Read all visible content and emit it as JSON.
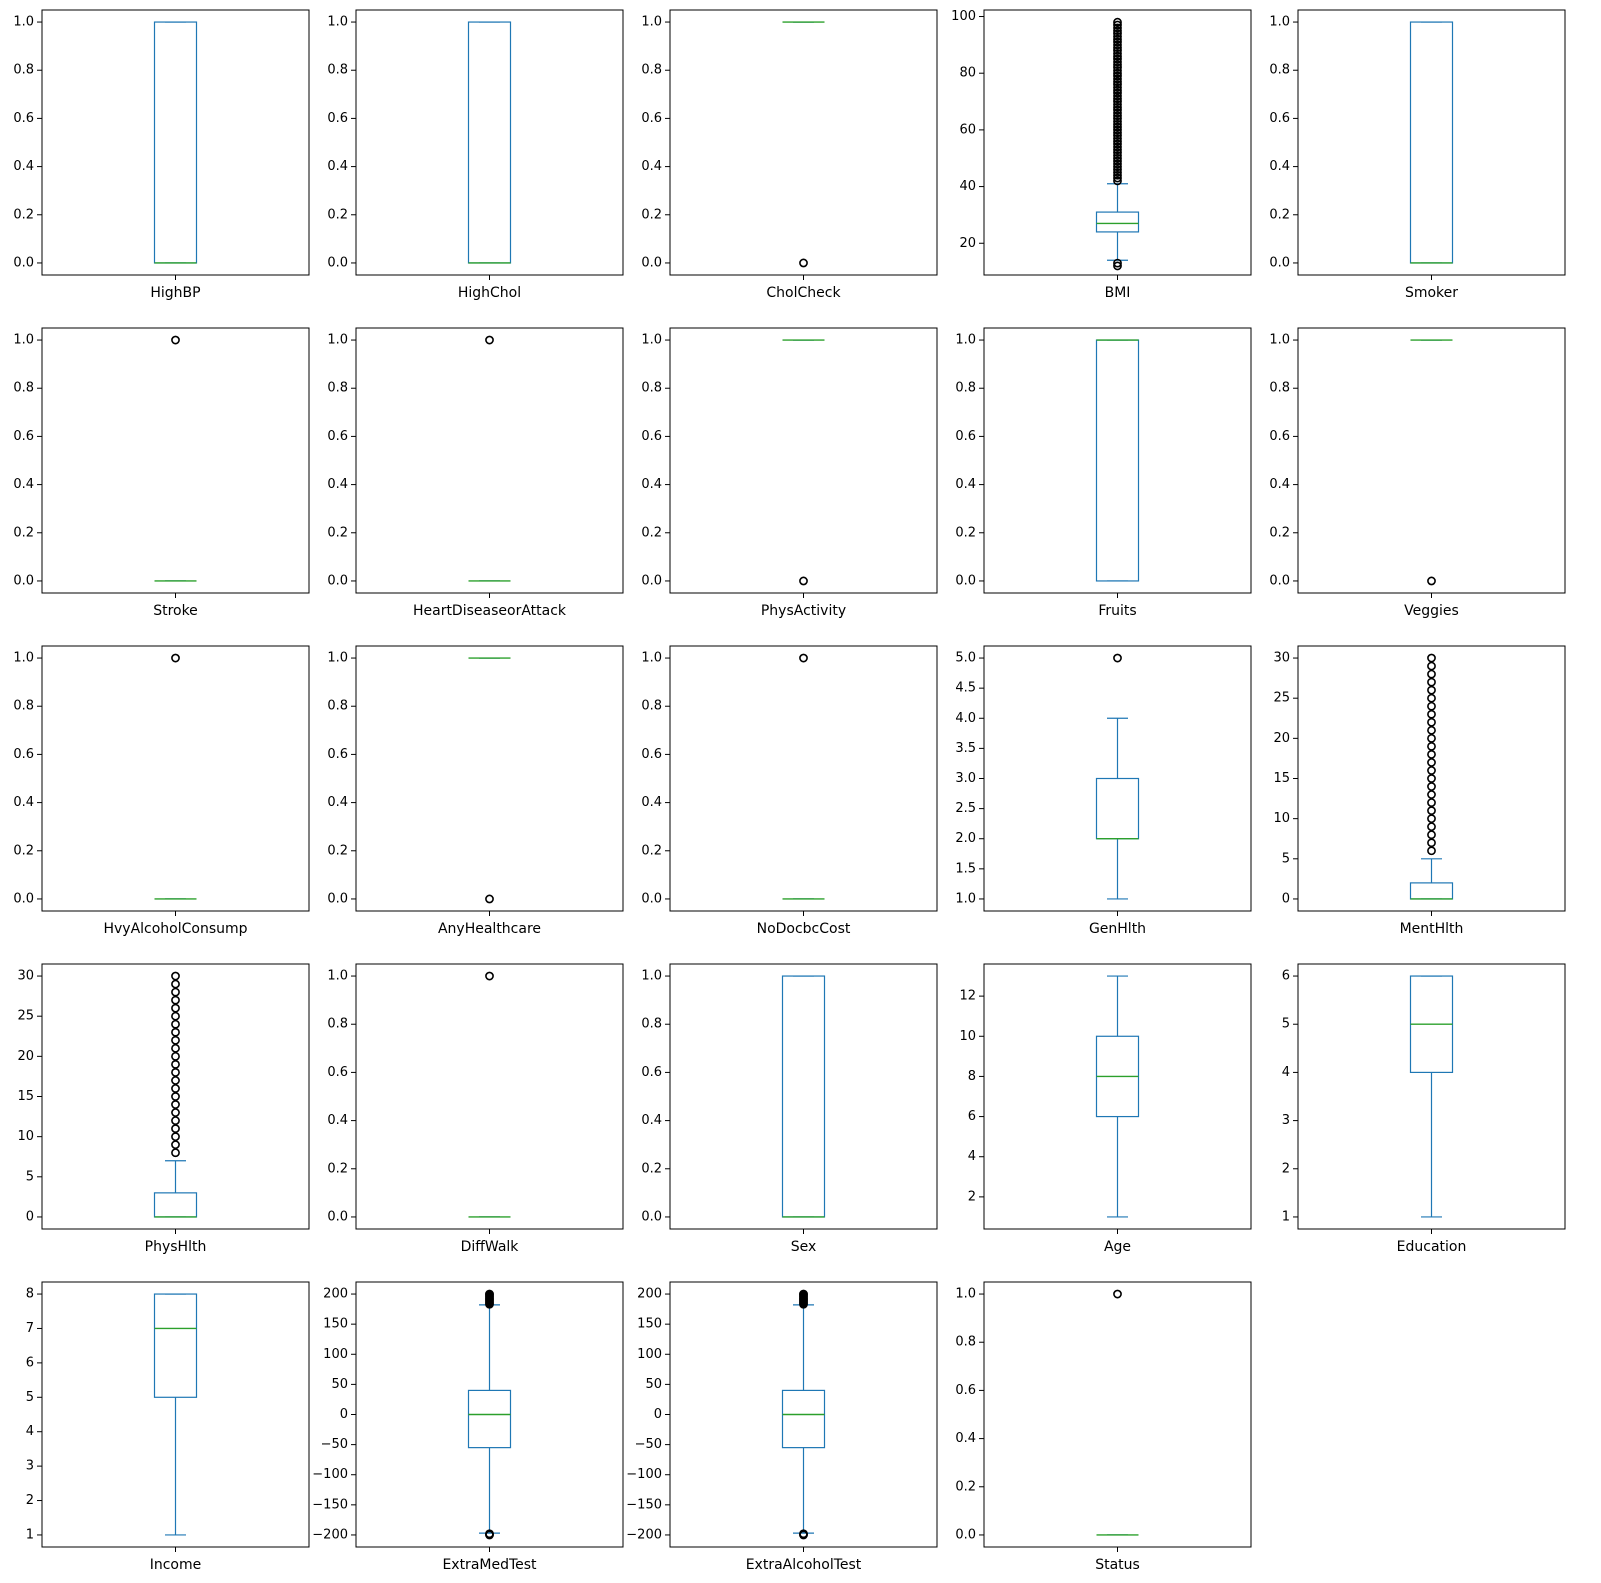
{
  "colors": {
    "box": "#1f77b4",
    "median": "#2ca02c",
    "flier": "#000000",
    "axes": "#000000",
    "background": "#ffffff"
  },
  "chart_data": [
    {
      "type": "box",
      "label": "HighBP",
      "ylim": [
        -0.05,
        1.05
      ],
      "yticks": [
        0.0,
        0.2,
        0.4,
        0.6,
        0.8,
        1.0
      ],
      "yticklabels": [
        "0.0",
        "0.2",
        "0.4",
        "0.6",
        "0.8",
        "1.0"
      ],
      "q1": 0,
      "median": 0,
      "q3": 1,
      "whisker_low": 0,
      "whisker_high": 1,
      "fliers": []
    },
    {
      "type": "box",
      "label": "HighChol",
      "ylim": [
        -0.05,
        1.05
      ],
      "yticks": [
        0.0,
        0.2,
        0.4,
        0.6,
        0.8,
        1.0
      ],
      "yticklabels": [
        "0.0",
        "0.2",
        "0.4",
        "0.6",
        "0.8",
        "1.0"
      ],
      "q1": 0,
      "median": 0,
      "q3": 1,
      "whisker_low": 0,
      "whisker_high": 1,
      "fliers": []
    },
    {
      "type": "box",
      "label": "CholCheck",
      "ylim": [
        -0.05,
        1.05
      ],
      "yticks": [
        0.0,
        0.2,
        0.4,
        0.6,
        0.8,
        1.0
      ],
      "yticklabels": [
        "0.0",
        "0.2",
        "0.4",
        "0.6",
        "0.8",
        "1.0"
      ],
      "q1": 1,
      "median": 1,
      "q3": 1,
      "whisker_low": 1,
      "whisker_high": 1,
      "fliers": [
        0
      ]
    },
    {
      "type": "box",
      "label": "BMI",
      "ylim": [
        8.8,
        102.3
      ],
      "yticks": [
        20,
        40,
        60,
        80,
        100
      ],
      "yticklabels": [
        "20",
        "40",
        "60",
        "80",
        "100"
      ],
      "q1": 24,
      "median": 27,
      "q3": 31,
      "whisker_low": 14,
      "whisker_high": 41,
      "fliers": [
        12,
        13,
        42,
        43,
        44,
        45,
        46,
        47,
        48,
        49,
        50,
        51,
        52,
        53,
        54,
        55,
        56,
        57,
        58,
        59,
        60,
        61,
        62,
        63,
        64,
        65,
        66,
        67,
        68,
        69,
        70,
        71,
        72,
        73,
        74,
        75,
        76,
        77,
        78,
        79,
        80,
        81,
        82,
        83,
        84,
        85,
        86,
        87,
        88,
        89,
        90,
        91,
        92,
        93,
        94,
        95,
        96,
        97,
        98
      ]
    },
    {
      "type": "box",
      "label": "Smoker",
      "ylim": [
        -0.05,
        1.05
      ],
      "yticks": [
        0.0,
        0.2,
        0.4,
        0.6,
        0.8,
        1.0
      ],
      "yticklabels": [
        "0.0",
        "0.2",
        "0.4",
        "0.6",
        "0.8",
        "1.0"
      ],
      "q1": 0,
      "median": 0,
      "q3": 1,
      "whisker_low": 0,
      "whisker_high": 1,
      "fliers": []
    },
    {
      "type": "box",
      "label": "Stroke",
      "ylim": [
        -0.05,
        1.05
      ],
      "yticks": [
        0.0,
        0.2,
        0.4,
        0.6,
        0.8,
        1.0
      ],
      "yticklabels": [
        "0.0",
        "0.2",
        "0.4",
        "0.6",
        "0.8",
        "1.0"
      ],
      "q1": 0,
      "median": 0,
      "q3": 0,
      "whisker_low": 0,
      "whisker_high": 0,
      "fliers": [
        1
      ]
    },
    {
      "type": "box",
      "label": "HeartDiseaseorAttack",
      "ylim": [
        -0.05,
        1.05
      ],
      "yticks": [
        0.0,
        0.2,
        0.4,
        0.6,
        0.8,
        1.0
      ],
      "yticklabels": [
        "0.0",
        "0.2",
        "0.4",
        "0.6",
        "0.8",
        "1.0"
      ],
      "q1": 0,
      "median": 0,
      "q3": 0,
      "whisker_low": 0,
      "whisker_high": 0,
      "fliers": [
        1
      ]
    },
    {
      "type": "box",
      "label": "PhysActivity",
      "ylim": [
        -0.05,
        1.05
      ],
      "yticks": [
        0.0,
        0.2,
        0.4,
        0.6,
        0.8,
        1.0
      ],
      "yticklabels": [
        "0.0",
        "0.2",
        "0.4",
        "0.6",
        "0.8",
        "1.0"
      ],
      "q1": 1,
      "median": 1,
      "q3": 1,
      "whisker_low": 1,
      "whisker_high": 1,
      "fliers": [
        0
      ]
    },
    {
      "type": "box",
      "label": "Fruits",
      "ylim": [
        -0.05,
        1.05
      ],
      "yticks": [
        0.0,
        0.2,
        0.4,
        0.6,
        0.8,
        1.0
      ],
      "yticklabels": [
        "0.0",
        "0.2",
        "0.4",
        "0.6",
        "0.8",
        "1.0"
      ],
      "q1": 0,
      "median": 1,
      "q3": 1,
      "whisker_low": 0,
      "whisker_high": 1,
      "fliers": []
    },
    {
      "type": "box",
      "label": "Veggies",
      "ylim": [
        -0.05,
        1.05
      ],
      "yticks": [
        0.0,
        0.2,
        0.4,
        0.6,
        0.8,
        1.0
      ],
      "yticklabels": [
        "0.0",
        "0.2",
        "0.4",
        "0.6",
        "0.8",
        "1.0"
      ],
      "q1": 1,
      "median": 1,
      "q3": 1,
      "whisker_low": 1,
      "whisker_high": 1,
      "fliers": [
        0
      ]
    },
    {
      "type": "box",
      "label": "HvyAlcoholConsump",
      "ylim": [
        -0.05,
        1.05
      ],
      "yticks": [
        0.0,
        0.2,
        0.4,
        0.6,
        0.8,
        1.0
      ],
      "yticklabels": [
        "0.0",
        "0.2",
        "0.4",
        "0.6",
        "0.8",
        "1.0"
      ],
      "q1": 0,
      "median": 0,
      "q3": 0,
      "whisker_low": 0,
      "whisker_high": 0,
      "fliers": [
        1
      ]
    },
    {
      "type": "box",
      "label": "AnyHealthcare",
      "ylim": [
        -0.05,
        1.05
      ],
      "yticks": [
        0.0,
        0.2,
        0.4,
        0.6,
        0.8,
        1.0
      ],
      "yticklabels": [
        "0.0",
        "0.2",
        "0.4",
        "0.6",
        "0.8",
        "1.0"
      ],
      "q1": 1,
      "median": 1,
      "q3": 1,
      "whisker_low": 1,
      "whisker_high": 1,
      "fliers": [
        0
      ]
    },
    {
      "type": "box",
      "label": "NoDocbcCost",
      "ylim": [
        -0.05,
        1.05
      ],
      "yticks": [
        0.0,
        0.2,
        0.4,
        0.6,
        0.8,
        1.0
      ],
      "yticklabels": [
        "0.0",
        "0.2",
        "0.4",
        "0.6",
        "0.8",
        "1.0"
      ],
      "q1": 0,
      "median": 0,
      "q3": 0,
      "whisker_low": 0,
      "whisker_high": 0,
      "fliers": [
        1
      ]
    },
    {
      "type": "box",
      "label": "GenHlth",
      "ylim": [
        0.8,
        5.2
      ],
      "yticks": [
        1.0,
        1.5,
        2.0,
        2.5,
        3.0,
        3.5,
        4.0,
        4.5,
        5.0
      ],
      "yticklabels": [
        "1.0",
        "1.5",
        "2.0",
        "2.5",
        "3.0",
        "3.5",
        "4.0",
        "4.5",
        "5.0"
      ],
      "q1": 2,
      "median": 2,
      "q3": 3,
      "whisker_low": 1,
      "whisker_high": 4,
      "fliers": [
        5
      ]
    },
    {
      "type": "box",
      "label": "MentHlth",
      "ylim": [
        -1.5,
        31.5
      ],
      "yticks": [
        0,
        5,
        10,
        15,
        20,
        25,
        30
      ],
      "yticklabels": [
        "0",
        "5",
        "10",
        "15",
        "20",
        "25",
        "30"
      ],
      "q1": 0,
      "median": 0,
      "q3": 2,
      "whisker_low": 0,
      "whisker_high": 5,
      "fliers": [
        6,
        7,
        8,
        9,
        10,
        11,
        12,
        13,
        14,
        15,
        16,
        17,
        18,
        19,
        20,
        21,
        22,
        23,
        24,
        25,
        26,
        27,
        28,
        29,
        30
      ]
    },
    {
      "type": "box",
      "label": "PhysHlth",
      "ylim": [
        -1.5,
        31.5
      ],
      "yticks": [
        0,
        5,
        10,
        15,
        20,
        25,
        30
      ],
      "yticklabels": [
        "0",
        "5",
        "10",
        "15",
        "20",
        "25",
        "30"
      ],
      "q1": 0,
      "median": 0,
      "q3": 3,
      "whisker_low": 0,
      "whisker_high": 7,
      "fliers": [
        8,
        9,
        10,
        11,
        12,
        13,
        14,
        15,
        16,
        17,
        18,
        19,
        20,
        21,
        22,
        23,
        24,
        25,
        26,
        27,
        28,
        29,
        30
      ]
    },
    {
      "type": "box",
      "label": "DiffWalk",
      "ylim": [
        -0.05,
        1.05
      ],
      "yticks": [
        0.0,
        0.2,
        0.4,
        0.6,
        0.8,
        1.0
      ],
      "yticklabels": [
        "0.0",
        "0.2",
        "0.4",
        "0.6",
        "0.8",
        "1.0"
      ],
      "q1": 0,
      "median": 0,
      "q3": 0,
      "whisker_low": 0,
      "whisker_high": 0,
      "fliers": [
        1
      ]
    },
    {
      "type": "box",
      "label": "Sex",
      "ylim": [
        -0.05,
        1.05
      ],
      "yticks": [
        0.0,
        0.2,
        0.4,
        0.6,
        0.8,
        1.0
      ],
      "yticklabels": [
        "0.0",
        "0.2",
        "0.4",
        "0.6",
        "0.8",
        "1.0"
      ],
      "q1": 0,
      "median": 0,
      "q3": 1,
      "whisker_low": 0,
      "whisker_high": 1,
      "fliers": []
    },
    {
      "type": "box",
      "label": "Age",
      "ylim": [
        0.4,
        13.6
      ],
      "yticks": [
        2,
        4,
        6,
        8,
        10,
        12
      ],
      "yticklabels": [
        "2",
        "4",
        "6",
        "8",
        "10",
        "12"
      ],
      "q1": 6,
      "median": 8,
      "q3": 10,
      "whisker_low": 1,
      "whisker_high": 13,
      "fliers": []
    },
    {
      "type": "box",
      "label": "Education",
      "ylim": [
        0.75,
        6.25
      ],
      "yticks": [
        1,
        2,
        3,
        4,
        5,
        6
      ],
      "yticklabels": [
        "1",
        "2",
        "3",
        "4",
        "5",
        "6"
      ],
      "q1": 4,
      "median": 5,
      "q3": 6,
      "whisker_low": 1,
      "whisker_high": 6,
      "fliers": []
    },
    {
      "type": "box",
      "label": "Income",
      "ylim": [
        0.65,
        8.35
      ],
      "yticks": [
        1,
        2,
        3,
        4,
        5,
        6,
        7,
        8
      ],
      "yticklabels": [
        "1",
        "2",
        "3",
        "4",
        "5",
        "6",
        "7",
        "8"
      ],
      "q1": 5,
      "median": 7,
      "q3": 8,
      "whisker_low": 1,
      "whisker_high": 8,
      "fliers": []
    },
    {
      "type": "box",
      "label": "ExtraMedTest",
      "ylim": [
        -220,
        220
      ],
      "yticks": [
        -200,
        -150,
        -100,
        -50,
        0,
        50,
        100,
        150,
        200
      ],
      "yticklabels": [
        "−200",
        "−150",
        "−100",
        "−50",
        "0",
        "50",
        "100",
        "150",
        "200"
      ],
      "q1": -55,
      "median": 0,
      "q3": 40,
      "whisker_low": -197,
      "whisker_high": 182,
      "fliers": [
        -200,
        -199,
        -198,
        183,
        185,
        187,
        189,
        191,
        193,
        195,
        197,
        199,
        200
      ]
    },
    {
      "type": "box",
      "label": "ExtraAlcoholTest",
      "ylim": [
        -220,
        220
      ],
      "yticks": [
        -200,
        -150,
        -100,
        -50,
        0,
        50,
        100,
        150,
        200
      ],
      "yticklabels": [
        "−200",
        "−150",
        "−100",
        "−50",
        "0",
        "50",
        "100",
        "150",
        "200"
      ],
      "q1": -55,
      "median": 0,
      "q3": 40,
      "whisker_low": -197,
      "whisker_high": 182,
      "fliers": [
        -200,
        -199,
        -198,
        183,
        185,
        187,
        189,
        191,
        193,
        195,
        197,
        199,
        200
      ]
    },
    {
      "type": "box",
      "label": "Status",
      "ylim": [
        -0.05,
        1.05
      ],
      "yticks": [
        0.0,
        0.2,
        0.4,
        0.6,
        0.8,
        1.0
      ],
      "yticklabels": [
        "0.0",
        "0.2",
        "0.4",
        "0.6",
        "0.8",
        "1.0"
      ],
      "q1": 0,
      "median": 0,
      "q3": 0,
      "whisker_low": 0,
      "whisker_high": 0,
      "fliers": [
        1
      ]
    }
  ]
}
